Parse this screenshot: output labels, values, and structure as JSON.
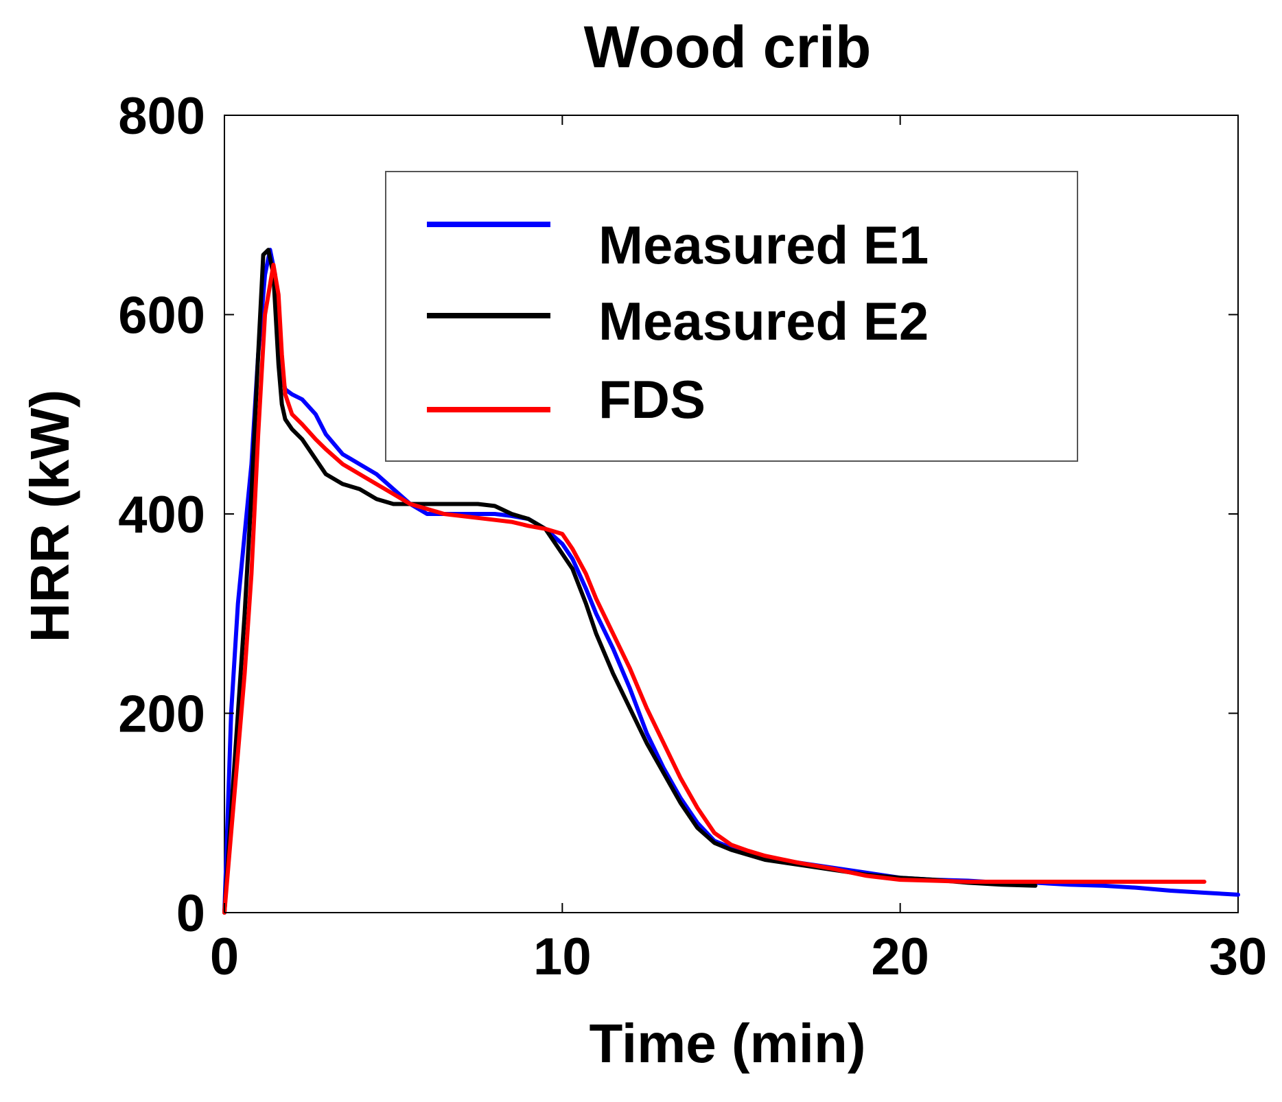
{
  "chart_data": {
    "type": "line",
    "title": "Wood crib",
    "xlabel": "Time (min)",
    "ylabel": "HRR (kW)",
    "xlim": [
      0,
      30
    ],
    "ylim": [
      0,
      800
    ],
    "x_ticks": [
      "0",
      "10",
      "20",
      "30"
    ],
    "y_ticks": [
      "0",
      "200",
      "400",
      "600",
      "800"
    ],
    "grid": false,
    "legend_position": "top-right",
    "series": [
      {
        "name": "Measured E1",
        "color": "#0000ff",
        "x": [
          0,
          0.2,
          0.4,
          0.6,
          0.8,
          1.0,
          1.2,
          1.35,
          1.5,
          1.6,
          1.7,
          1.8,
          2.0,
          2.3,
          2.7,
          3.0,
          3.5,
          4.0,
          4.5,
          5.0,
          5.5,
          6.0,
          6.5,
          7.0,
          7.5,
          8.0,
          8.5,
          9.0,
          9.5,
          10.0,
          10.3,
          10.7,
          11.0,
          11.5,
          12.0,
          12.5,
          13.0,
          13.5,
          14.0,
          14.5,
          15.0,
          15.5,
          16.0,
          17.0,
          18.0,
          19.0,
          20.0,
          21.0,
          22.0,
          23.0,
          24.0,
          25.0,
          26.0,
          27.0,
          28.0,
          29.0,
          30.0
        ],
        "values": [
          0,
          200,
          310,
          380,
          450,
          560,
          640,
          665,
          640,
          580,
          540,
          525,
          520,
          515,
          500,
          480,
          460,
          450,
          440,
          425,
          410,
          400,
          400,
          400,
          400,
          400,
          398,
          395,
          385,
          370,
          355,
          325,
          300,
          265,
          225,
          180,
          145,
          115,
          90,
          72,
          65,
          60,
          55,
          50,
          45,
          40,
          35,
          33,
          32,
          30,
          30,
          28,
          27,
          25,
          22,
          20,
          18
        ]
      },
      {
        "name": "Measured E2",
        "color": "#000000",
        "x": [
          0,
          0.2,
          0.4,
          0.6,
          0.8,
          1.0,
          1.15,
          1.3,
          1.45,
          1.6,
          1.7,
          1.8,
          2.0,
          2.3,
          2.7,
          3.0,
          3.5,
          4.0,
          4.5,
          5.0,
          5.5,
          6.0,
          6.5,
          7.0,
          7.5,
          8.0,
          8.5,
          9.0,
          9.5,
          10.0,
          10.3,
          10.7,
          11.0,
          11.5,
          12.0,
          12.5,
          13.0,
          13.5,
          14.0,
          14.5,
          15.0,
          15.5,
          16.0,
          17.0,
          18.0,
          19.0,
          20.0,
          21.0,
          22.0,
          23.0,
          24.0
        ],
        "values": [
          0,
          100,
          200,
          300,
          420,
          560,
          660,
          665,
          640,
          550,
          510,
          495,
          485,
          475,
          455,
          440,
          430,
          425,
          415,
          410,
          410,
          410,
          410,
          410,
          410,
          408,
          400,
          395,
          385,
          360,
          345,
          310,
          280,
          240,
          205,
          170,
          140,
          110,
          85,
          70,
          63,
          58,
          53,
          48,
          43,
          38,
          35,
          33,
          30,
          28,
          27
        ]
      },
      {
        "name": "FDS",
        "color": "#ff0000",
        "x": [
          0,
          0.2,
          0.4,
          0.6,
          0.8,
          1.0,
          1.2,
          1.45,
          1.6,
          1.7,
          1.8,
          2.0,
          2.3,
          2.7,
          3.0,
          3.5,
          4.0,
          4.5,
          5.0,
          5.5,
          6.0,
          6.5,
          7.0,
          7.5,
          8.0,
          8.5,
          9.0,
          9.5,
          10.0,
          10.3,
          10.7,
          11.0,
          11.5,
          12.0,
          12.5,
          13.0,
          13.5,
          14.0,
          14.5,
          15.0,
          15.5,
          16.0,
          17.0,
          18.0,
          19.0,
          20.0,
          21.0,
          22.0,
          23.0,
          24.0,
          25.0,
          26.0,
          27.0,
          28.0,
          29.0
        ],
        "values": [
          0,
          80,
          160,
          240,
          340,
          480,
          600,
          650,
          620,
          560,
          520,
          500,
          490,
          475,
          465,
          450,
          440,
          430,
          420,
          410,
          405,
          400,
          398,
          396,
          394,
          392,
          388,
          385,
          380,
          365,
          340,
          315,
          280,
          245,
          205,
          170,
          135,
          105,
          80,
          68,
          62,
          57,
          50,
          44,
          37,
          33,
          32,
          31,
          31,
          31,
          31,
          31,
          31,
          31,
          31
        ]
      }
    ]
  }
}
